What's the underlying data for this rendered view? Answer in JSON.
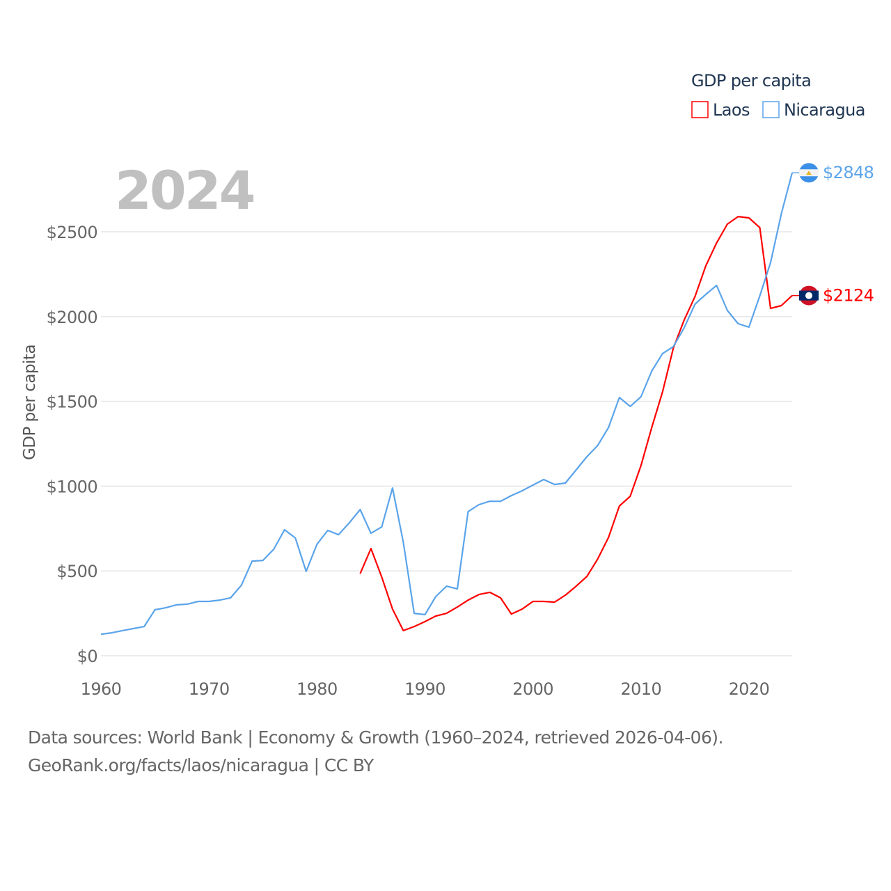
{
  "chart_data": {
    "type": "line",
    "title": "GDP per capita",
    "ylabel": "GDP per capita",
    "xlabel": "",
    "year_label": "2024",
    "xlim": [
      1960,
      2024
    ],
    "ylim": [
      0,
      2900
    ],
    "x_ticks": [
      1960,
      1970,
      1980,
      1990,
      2000,
      2010,
      2020
    ],
    "y_ticks": [
      0,
      500,
      1000,
      1500,
      2000,
      2500
    ],
    "y_tick_labels": [
      "$0",
      "$500",
      "$1000",
      "$1500",
      "$2000",
      "$2500"
    ],
    "grid": true,
    "legend_position": "top-right",
    "series": [
      {
        "name": "Laos",
        "color": "#ff0000",
        "end_label": "$2124",
        "start_year": 1984,
        "values": [
          484,
          632,
          464,
          275,
          148,
          172,
          201,
          234,
          250,
          287,
          328,
          361,
          374,
          341,
          246,
          275,
          320,
          320,
          316,
          357,
          410,
          468,
          571,
          698,
          883,
          940,
          1121,
          1346,
          1556,
          1814,
          1979,
          2118,
          2299,
          2434,
          2545,
          2590,
          2582,
          2525,
          2048,
          2065,
          2124
        ]
      },
      {
        "name": "Nicaragua",
        "color": "#5ba4ea",
        "end_label": "$2848",
        "start_year": 1960,
        "values": [
          127,
          135,
          148,
          160,
          172,
          271,
          283,
          300,
          304,
          320,
          320,
          328,
          341,
          415,
          558,
          562,
          628,
          743,
          694,
          497,
          657,
          739,
          714,
          784,
          862,
          722,
          760,
          989,
          669,
          250,
          242,
          349,
          410,
          394,
          850,
          891,
          911,
          911,
          944,
          973,
          1006,
          1039,
          1010,
          1018,
          1096,
          1174,
          1240,
          1346,
          1523,
          1470,
          1527,
          1679,
          1782,
          1823,
          1933,
          2073,
          2131,
          2184,
          2036,
          1958,
          1938,
          2122,
          2319,
          2607,
          2848
        ]
      }
    ]
  },
  "footer": {
    "line1": "Data sources: World Bank | Economy & Growth (1960–2024, retrieved 2026-04-06).",
    "line2": "GeoRank.org/facts/laos/nicaragua | CC BY"
  }
}
